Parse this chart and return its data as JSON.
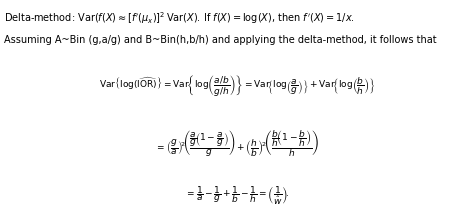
{
  "background_color": "#ffffff",
  "text_color": "#000000",
  "figsize": [
    4.74,
    2.21
  ],
  "dpi": 100,
  "line1_plain": "Delta-method: Var(",
  "line2": "Assuming A~Bin (g,a/g) and B~Bin(h,b/h) and applying the delta-method, it follows that",
  "eq1": "$\\mathrm{Var}\\left\\{\\log(\\widehat{\\mathrm{IOR}})\\right\\} = \\mathrm{Var}\\!\\left\\{\\log\\!\\left(\\dfrac{a/b}{g/h}\\right)\\right\\} = \\mathrm{Var}\\!\\left\\{\\log\\!\\left(\\dfrac{a}{g}\\right)\\right\\} + \\mathrm{Var}\\!\\left\\{\\log\\!\\left(\\dfrac{b}{h}\\right)\\right\\}$",
  "eq2": "$= \\left(\\dfrac{g}{a}\\right)^{\\!2}\\!\\left(\\dfrac{\\dfrac{a}{g}\\!\\left(1-\\dfrac{a}{g}\\right)}{g}\\right) + \\left(\\dfrac{h}{b}\\right)^{\\!2}\\!\\left(\\dfrac{\\dfrac{b}{h}\\!\\left(1-\\dfrac{b}{h}\\right)}{h}\\right)$",
  "eq3": "$= \\dfrac{1}{a} - \\dfrac{1}{g} + \\dfrac{1}{b} - \\dfrac{1}{h} = \\left(\\dfrac{1}{\\hat{w}}\\right)\\!.$",
  "line1_math": "$\\mathrm{Var}(f(X) \\approx [f'(\\mu_x)]^2\\,\\mathrm{Var}(X).\\;\\mathrm{If}\\;f(X) = \\log(X),\\;\\mathrm{then}\\;f'(X) = 1/x.$",
  "font_size_text": 7.0,
  "font_size_eq": 6.5
}
